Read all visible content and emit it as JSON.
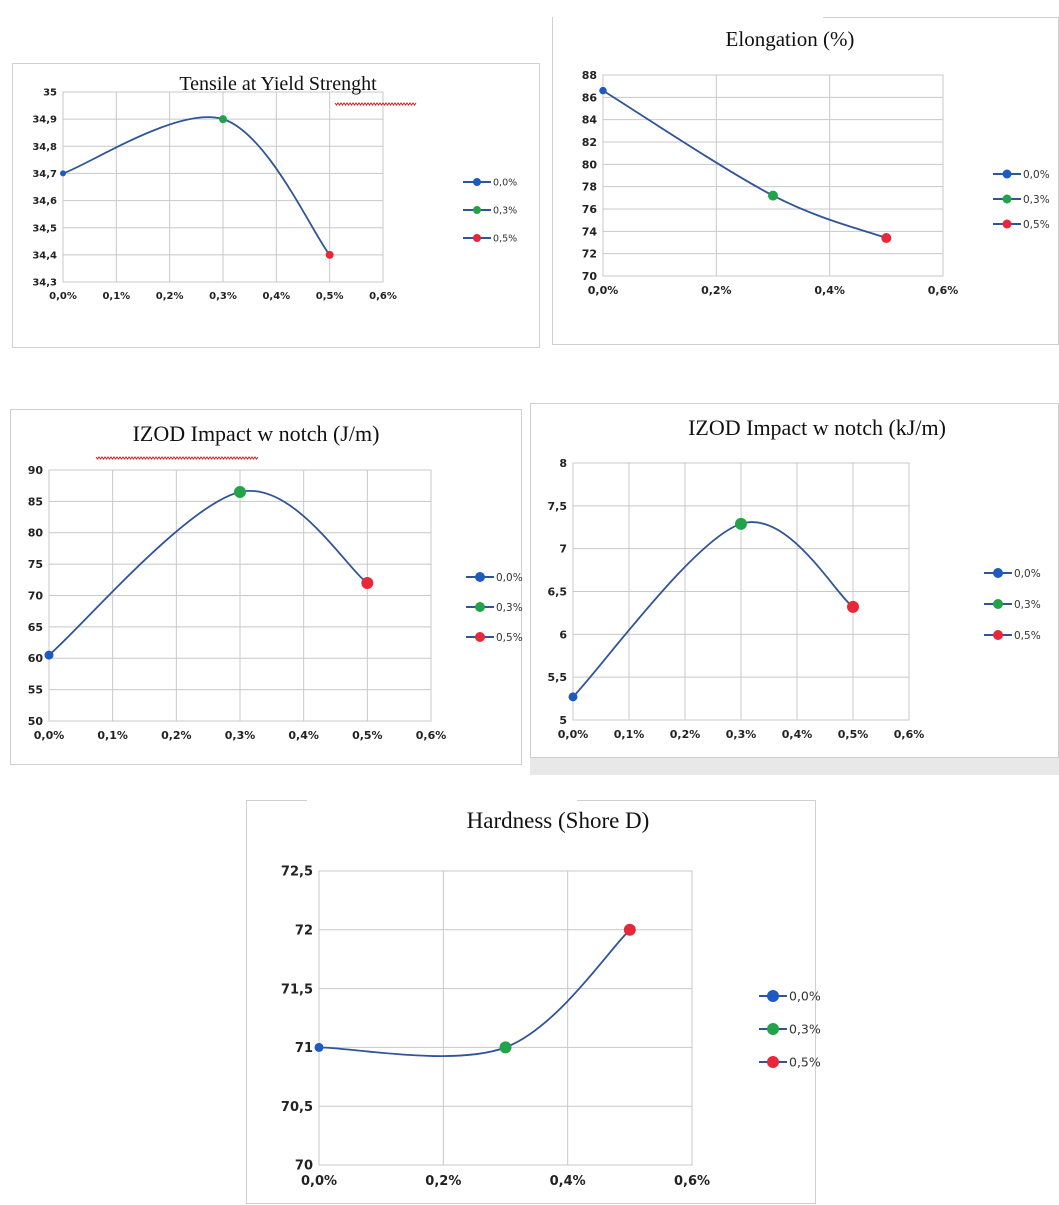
{
  "legend_colors": {
    "s0": "#1f5bbf",
    "s1": "#22a34a",
    "s2": "#e8283a",
    "line": "#2f5597"
  },
  "chart_data": [
    {
      "type": "line",
      "title": "Tensile at Yield Strenght",
      "x": [
        0.0,
        0.3,
        0.5
      ],
      "y": [
        34.7,
        34.9,
        34.4
      ],
      "series": [
        {
          "name": "0,0%"
        },
        {
          "name": "0,3%"
        },
        {
          "name": "0,5%"
        }
      ],
      "xticks": [
        "0,0%",
        "0,1%",
        "0,2%",
        "0,3%",
        "0,4%",
        "0,5%",
        "0,6%"
      ],
      "xtick_values": [
        0,
        0.1,
        0.2,
        0.3,
        0.4,
        0.5,
        0.6
      ],
      "yticks": [
        "34,3",
        "34,4",
        "34,5",
        "34,6",
        "34,7",
        "34,8",
        "34,9",
        "35"
      ],
      "ytick_values": [
        34.3,
        34.4,
        34.5,
        34.6,
        34.7,
        34.8,
        34.9,
        35.0
      ],
      "xlim": [
        0,
        0.6
      ],
      "ylim": [
        34.3,
        35.0
      ],
      "grid": true,
      "smooth": true,
      "legend_position": "right"
    },
    {
      "type": "line",
      "title": "Elongation (%)",
      "x": [
        0.0,
        0.3,
        0.5
      ],
      "y": [
        86.6,
        77.2,
        73.4
      ],
      "series": [
        {
          "name": "0,0%"
        },
        {
          "name": "0,3%"
        },
        {
          "name": "0,5%"
        }
      ],
      "xticks": [
        "0,0%",
        "0,2%",
        "0,4%",
        "0,6%"
      ],
      "xtick_values": [
        0,
        0.2,
        0.4,
        0.6
      ],
      "yticks": [
        "70",
        "72",
        "74",
        "76",
        "78",
        "80",
        "82",
        "84",
        "86",
        "88"
      ],
      "ytick_values": [
        70,
        72,
        74,
        76,
        78,
        80,
        82,
        84,
        86,
        88
      ],
      "xlim": [
        0,
        0.6
      ],
      "ylim": [
        70,
        88
      ],
      "grid": true,
      "smooth": true,
      "legend_position": "right"
    },
    {
      "type": "line",
      "title": "IZOD  Impact w notch (J/m)",
      "x": [
        0.0,
        0.3,
        0.5
      ],
      "y": [
        60.5,
        86.5,
        72
      ],
      "series": [
        {
          "name": "0,0%"
        },
        {
          "name": "0,3%"
        },
        {
          "name": "0,5%"
        }
      ],
      "xticks": [
        "0,0%",
        "0,1%",
        "0,2%",
        "0,3%",
        "0,4%",
        "0,5%",
        "0,6%"
      ],
      "xtick_values": [
        0,
        0.1,
        0.2,
        0.3,
        0.4,
        0.5,
        0.6
      ],
      "yticks": [
        "50",
        "55",
        "60",
        "65",
        "70",
        "75",
        "80",
        "85",
        "90"
      ],
      "ytick_values": [
        50,
        55,
        60,
        65,
        70,
        75,
        80,
        85,
        90
      ],
      "xlim": [
        0,
        0.6
      ],
      "ylim": [
        50,
        90
      ],
      "grid": true,
      "smooth": true,
      "legend_position": "right"
    },
    {
      "type": "line",
      "title": "IZOD Impact w notch (kJ/m)",
      "x": [
        0.0,
        0.3,
        0.5
      ],
      "y": [
        5.27,
        7.29,
        6.32
      ],
      "series": [
        {
          "name": "0,0%"
        },
        {
          "name": "0,3%"
        },
        {
          "name": "0,5%"
        }
      ],
      "xticks": [
        "0,0%",
        "0,1%",
        "0,2%",
        "0,3%",
        "0,4%",
        "0,5%",
        "0,6%"
      ],
      "xtick_values": [
        0,
        0.1,
        0.2,
        0.3,
        0.4,
        0.5,
        0.6
      ],
      "yticks": [
        "5",
        "5,5",
        "6",
        "6,5",
        "7",
        "7,5",
        "8"
      ],
      "ytick_values": [
        5,
        5.5,
        6,
        6.5,
        7,
        7.5,
        8
      ],
      "xlim": [
        0,
        0.6
      ],
      "ylim": [
        5,
        8
      ],
      "grid": true,
      "smooth": true,
      "legend_position": "right"
    },
    {
      "type": "line",
      "title": "Hardness (Shore D)",
      "x": [
        0.0,
        0.3,
        0.5
      ],
      "y": [
        71,
        71,
        72
      ],
      "series": [
        {
          "name": "0,0%"
        },
        {
          "name": "0,3%"
        },
        {
          "name": "0,5%"
        }
      ],
      "xticks": [
        "0,0%",
        "0,2%",
        "0,4%",
        "0,6%"
      ],
      "xtick_values": [
        0,
        0.2,
        0.4,
        0.6
      ],
      "yticks": [
        "70",
        "70,5",
        "71",
        "71,5",
        "72",
        "72,5"
      ],
      "ytick_values": [
        70,
        70.5,
        71,
        71.5,
        72,
        72.5
      ],
      "xlim": [
        0,
        0.6
      ],
      "ylim": [
        70,
        72.5
      ],
      "grid": true,
      "smooth": true,
      "legend_position": "right"
    }
  ]
}
